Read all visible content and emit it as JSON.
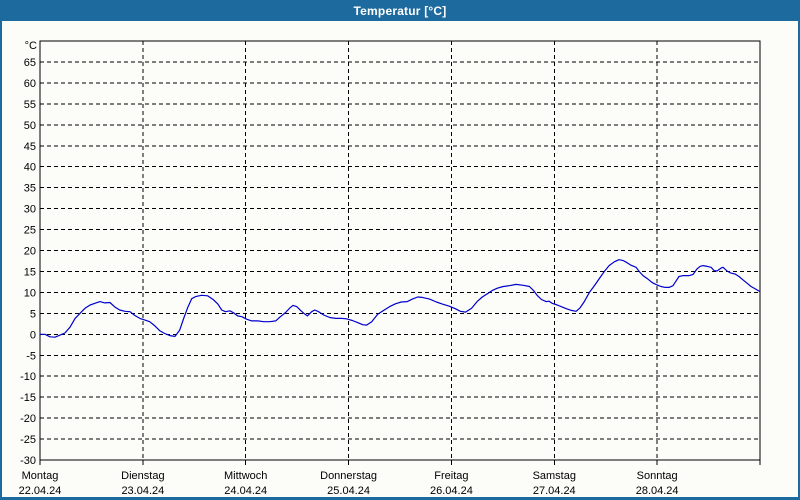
{
  "window": {
    "title": "Temperatur [°C]",
    "title_bar_color": "#1d6a9e",
    "frame_border_color": "#1d6a9e",
    "content_background": "#fcfdf8"
  },
  "chart_data": {
    "type": "line",
    "title": "Temperatur [°C]",
    "unit_label": "°C",
    "xlabel": "",
    "ylabel": "°C",
    "ylim": [
      -30,
      70
    ],
    "ytick_step": 5,
    "yticks_labeled": [
      65,
      60,
      55,
      50,
      45,
      40,
      35,
      30,
      25,
      20,
      15,
      10,
      5,
      0,
      -5,
      -10,
      -15,
      -20,
      -25,
      -30
    ],
    "x_hours_span": [
      0,
      168
    ],
    "grid": "dashed",
    "grid_color": "#000000",
    "line_color": "#0000cc",
    "legend": "none",
    "x_axis_days": [
      {
        "weekday": "Montag",
        "date": "22.04.24"
      },
      {
        "weekday": "Dienstag",
        "date": "23.04.24"
      },
      {
        "weekday": "Mittwoch",
        "date": "24.04.24"
      },
      {
        "weekday": "Donnerstag",
        "date": "25.04.24"
      },
      {
        "weekday": "Freitag",
        "date": "26.04.24"
      },
      {
        "weekday": "Samstag",
        "date": "27.04.24"
      },
      {
        "weekday": "Sonntag",
        "date": "28.04.24"
      }
    ],
    "series": [
      {
        "name": "Temperatur",
        "points": [
          [
            0,
            0
          ],
          [
            1.2,
            0
          ],
          [
            2.3,
            -0.6
          ],
          [
            3.5,
            -0.7
          ],
          [
            4.7,
            -0.2
          ],
          [
            5.8,
            0.3
          ],
          [
            7,
            1.7
          ],
          [
            8.2,
            3.8
          ],
          [
            9.3,
            5
          ],
          [
            10.5,
            6.2
          ],
          [
            11.7,
            7
          ],
          [
            12.8,
            7.4
          ],
          [
            14,
            7.8
          ],
          [
            15.1,
            7.5
          ],
          [
            16.3,
            7.6
          ],
          [
            17.5,
            6.5
          ],
          [
            18.6,
            5.8
          ],
          [
            19.8,
            5.5
          ],
          [
            21,
            5.4
          ],
          [
            22.1,
            4.5
          ],
          [
            23.3,
            3.8
          ],
          [
            24.5,
            3.4
          ],
          [
            25.6,
            3
          ],
          [
            26.8,
            2
          ],
          [
            28,
            0.8
          ],
          [
            29.1,
            0.2
          ],
          [
            30.3,
            -0.3
          ],
          [
            31.5,
            -0.5
          ],
          [
            32.6,
            1
          ],
          [
            33.6,
            4
          ],
          [
            34.5,
            6.5
          ],
          [
            35.4,
            8.5
          ],
          [
            36.3,
            9
          ],
          [
            37.7,
            9.3
          ],
          [
            39.1,
            9.2
          ],
          [
            40.5,
            8.2
          ],
          [
            41.5,
            7.2
          ],
          [
            42.4,
            5.8
          ],
          [
            43.3,
            5.4
          ],
          [
            44.3,
            5.6
          ],
          [
            45.2,
            5.1
          ],
          [
            46.1,
            4.4
          ],
          [
            47.1,
            4.2
          ],
          [
            48.2,
            3.6
          ],
          [
            49.4,
            3.2
          ],
          [
            50.8,
            3.2
          ],
          [
            52.2,
            3
          ],
          [
            53.6,
            3
          ],
          [
            55,
            3.2
          ],
          [
            56.1,
            4.2
          ],
          [
            57.3,
            5.2
          ],
          [
            58.3,
            6.3
          ],
          [
            59,
            6.9
          ],
          [
            59.9,
            6.6
          ],
          [
            60.8,
            5.7
          ],
          [
            61.7,
            4.9
          ],
          [
            62.4,
            4.4
          ],
          [
            63.4,
            5.4
          ],
          [
            64.1,
            5.8
          ],
          [
            65,
            5.4
          ],
          [
            66.2,
            4.6
          ],
          [
            67.6,
            4
          ],
          [
            69,
            3.8
          ],
          [
            70.4,
            3.8
          ],
          [
            71.5,
            3.7
          ],
          [
            72.9,
            3.3
          ],
          [
            74.1,
            2.8
          ],
          [
            75.3,
            2.3
          ],
          [
            76.2,
            2.2
          ],
          [
            77.4,
            3
          ],
          [
            78.8,
            4.8
          ],
          [
            80.2,
            5.7
          ],
          [
            81.6,
            6.6
          ],
          [
            83,
            7.3
          ],
          [
            84.3,
            7.7
          ],
          [
            85.7,
            7.8
          ],
          [
            86.9,
            8.4
          ],
          [
            88.1,
            8.9
          ],
          [
            89.2,
            8.8
          ],
          [
            90.9,
            8.4
          ],
          [
            92.5,
            7.7
          ],
          [
            93.9,
            7.2
          ],
          [
            95.5,
            6.7
          ],
          [
            96.9,
            6.1
          ],
          [
            98.1,
            5.5
          ],
          [
            99.3,
            5.3
          ],
          [
            100.7,
            6.2
          ],
          [
            102,
            7.8
          ],
          [
            103.2,
            8.9
          ],
          [
            104.4,
            9.7
          ],
          [
            105.6,
            10.5
          ],
          [
            106.7,
            11
          ],
          [
            108.1,
            11.4
          ],
          [
            109.5,
            11.6
          ],
          [
            111.1,
            11.9
          ],
          [
            112.8,
            11.7
          ],
          [
            114.2,
            11.4
          ],
          [
            115.1,
            10.5
          ],
          [
            116,
            9.3
          ],
          [
            117,
            8.3
          ],
          [
            118.1,
            7.8
          ],
          [
            118.8,
            7.9
          ],
          [
            119.5,
            7.4
          ],
          [
            120.7,
            7
          ],
          [
            121.6,
            6.6
          ],
          [
            122.8,
            6.1
          ],
          [
            124,
            5.7
          ],
          [
            125.1,
            5.5
          ],
          [
            126,
            6.3
          ],
          [
            127,
            7.8
          ],
          [
            128.2,
            10
          ],
          [
            129.3,
            11.5
          ],
          [
            130.5,
            13.3
          ],
          [
            131.7,
            15
          ],
          [
            132.8,
            16.4
          ],
          [
            134,
            17.3
          ],
          [
            135.1,
            17.8
          ],
          [
            136.1,
            17.6
          ],
          [
            137,
            17.1
          ],
          [
            137.9,
            16.5
          ],
          [
            139.1,
            16
          ],
          [
            139.8,
            15
          ],
          [
            140.7,
            14
          ],
          [
            141.7,
            13.3
          ],
          [
            142.4,
            12.7
          ],
          [
            143.1,
            12.2
          ],
          [
            144,
            11.8
          ],
          [
            144.9,
            11.4
          ],
          [
            145.9,
            11.2
          ],
          [
            146.8,
            11.2
          ],
          [
            147.7,
            11.6
          ],
          [
            148.4,
            12.7
          ],
          [
            149.1,
            13.8
          ],
          [
            150.1,
            14
          ],
          [
            151.5,
            14
          ],
          [
            152.4,
            14.3
          ],
          [
            153.3,
            15.6
          ],
          [
            154,
            16.2
          ],
          [
            154.7,
            16.4
          ],
          [
            155.7,
            16.2
          ],
          [
            156.6,
            16
          ],
          [
            157.3,
            15.2
          ],
          [
            158,
            15.1
          ],
          [
            158.9,
            15.8
          ],
          [
            159.4,
            16
          ],
          [
            160.3,
            15.1
          ],
          [
            161.2,
            14.6
          ],
          [
            162.2,
            14.4
          ],
          [
            163.1,
            13.8
          ],
          [
            164,
            13
          ],
          [
            165,
            12.2
          ],
          [
            165.9,
            11.4
          ],
          [
            166.8,
            10.9
          ],
          [
            168,
            10.2
          ]
        ]
      }
    ]
  }
}
